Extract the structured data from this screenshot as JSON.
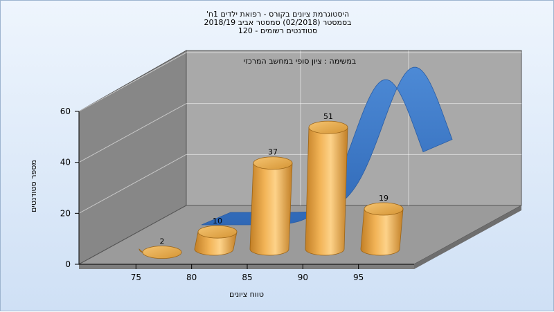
{
  "chart_data": {
    "type": "bar",
    "title_lines": [
      "היסטוגרמת ציונים בקורס - רפואת ילדים 1ח'",
      "בסמסטר  (02/2018)  סמסטר אביב 2018/19",
      "סטודנטים רשומים - 120"
    ],
    "annotation": "במשימה : ציון סופי במחשב המרכזי",
    "xlabel": "טווח ציונים",
    "ylabel": "מספר סטודנטים",
    "x_ticks": [
      75,
      80,
      85,
      90,
      95
    ],
    "y_ticks": [
      0,
      20,
      40,
      60
    ],
    "ylim": [
      0,
      60
    ],
    "categories": [
      "75",
      "80",
      "85",
      "90",
      "95"
    ],
    "values": [
      2,
      10,
      37,
      51,
      19
    ],
    "curve_type": "normal-distribution",
    "colors": {
      "bar": "#e8a845",
      "curve": "#3a75c4",
      "back_wall": "#a9a9a9",
      "side_wall": "#878787",
      "floor": "#9b9b9b"
    }
  }
}
